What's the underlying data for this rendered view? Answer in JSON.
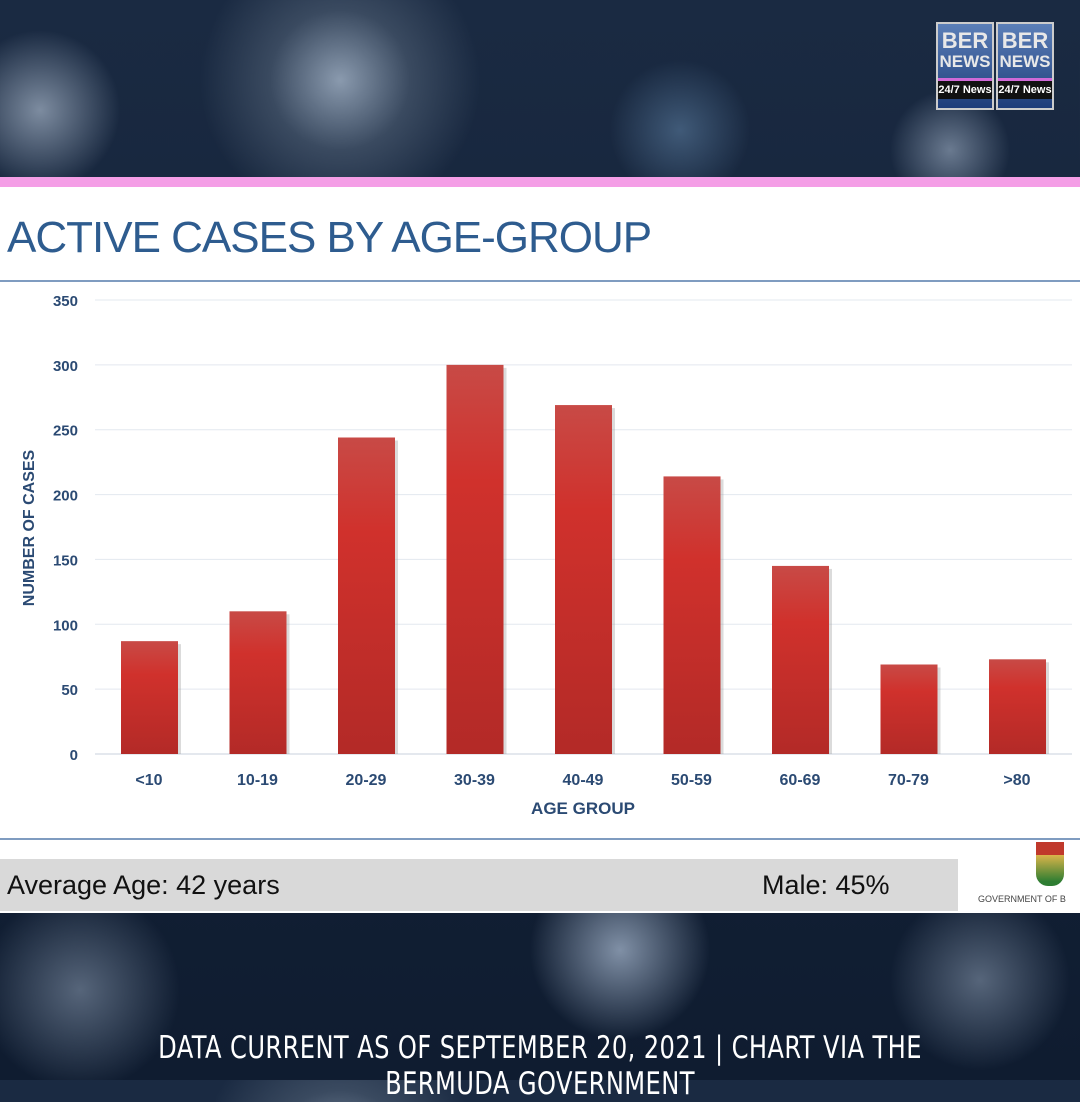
{
  "logo": {
    "line1": "BER",
    "line2": "NEWS",
    "tagline": "24/7 News"
  },
  "chart_data": {
    "type": "bar",
    "title": "ACTIVE CASES BY AGE-GROUP",
    "xlabel": "AGE GROUP",
    "ylabel": "NUMBER OF CASES",
    "categories": [
      "<10",
      "10-19",
      "20-29",
      "30-39",
      "40-49",
      "50-59",
      "60-69",
      "70-79",
      ">80"
    ],
    "values": [
      87,
      110,
      244,
      300,
      269,
      214,
      145,
      69,
      73
    ],
    "ylim": [
      0,
      350
    ],
    "yticks": [
      0,
      50,
      100,
      150,
      200,
      250,
      300,
      350
    ],
    "grid": true,
    "bar_color": "#c9302c"
  },
  "footer": {
    "average_age": "Average Age: 42 years",
    "male": "Male: 45%",
    "government": "GOVERNMENT OF B"
  },
  "caption": "DATA CURRENT AS OF SEPTEMBER 20, 2021 | CHART VIA THE BERMUDA GOVERNMENT"
}
